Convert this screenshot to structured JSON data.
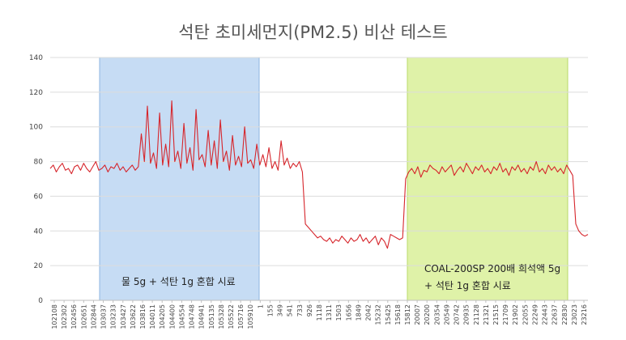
{
  "chart_data": {
    "type": "line",
    "title": "석탄 초미세먼지(PM2.5) 비산 테스트",
    "xlabel": "",
    "ylabel": "",
    "ylim": [
      0,
      140
    ],
    "yticks": [
      0,
      20,
      40,
      60,
      80,
      100,
      120,
      140
    ],
    "grid": true,
    "x_tick_labels": [
      "102108",
      "102302",
      "102456",
      "102651",
      "102844",
      "103037",
      "103233",
      "103427",
      "103622",
      "103816",
      "104011",
      "104205",
      "104400",
      "104554",
      "104748",
      "104941",
      "105135",
      "105328",
      "105522",
      "105716",
      "105910",
      "1",
      "155",
      "349",
      "541",
      "733",
      "926",
      "1118",
      "1311",
      "1503",
      "1656",
      "1849",
      "2042",
      "15232",
      "15425",
      "15618",
      "15812",
      "20007",
      "20200",
      "20354",
      "20549",
      "20742",
      "20935",
      "21128",
      "21321",
      "21515",
      "21709",
      "21902",
      "22055",
      "22249",
      "22443",
      "22637",
      "22830",
      "23023",
      "23216"
    ],
    "series": [
      {
        "values": [
          76,
          78,
          74,
          77,
          79,
          75,
          76,
          73,
          77,
          78,
          75,
          79,
          76,
          74,
          77,
          80,
          75,
          76,
          78,
          74,
          77,
          76,
          79,
          75,
          77,
          74,
          76,
          78,
          75,
          77,
          96,
          80,
          112,
          79,
          85,
          76,
          108,
          78,
          90,
          77,
          115,
          80,
          86,
          76,
          102,
          79,
          88,
          75,
          110,
          81,
          84,
          77,
          98,
          78,
          92,
          76,
          104,
          80,
          86,
          75,
          95,
          78,
          83,
          77,
          100,
          79,
          81,
          76,
          90,
          78,
          84,
          77,
          88,
          76,
          80,
          75,
          92,
          78,
          82,
          76,
          79,
          77,
          80,
          74,
          44,
          42,
          40,
          38,
          36,
          37,
          35,
          34,
          36,
          33,
          35,
          34,
          37,
          35,
          33,
          36,
          34,
          35,
          38,
          34,
          36,
          33,
          35,
          37,
          32,
          36,
          34,
          30,
          38,
          37,
          36,
          35,
          36,
          70,
          74,
          76,
          73,
          77,
          71,
          75,
          74,
          78,
          76,
          75,
          73,
          77,
          74,
          76,
          78,
          72,
          75,
          77,
          74,
          79,
          76,
          73,
          77,
          75,
          78,
          74,
          76,
          73,
          77,
          75,
          79,
          74,
          76,
          72,
          77,
          75,
          78,
          74,
          76,
          73,
          77,
          75,
          80,
          74,
          76,
          73,
          78,
          75,
          77,
          74,
          76,
          73,
          78,
          75,
          72,
          44,
          40,
          38,
          37,
          38
        ]
      }
    ],
    "shaded_regions": [
      {
        "label": "물 5g + 석탄 1g 혼합 시료",
        "color": "#c6dcf4",
        "border": "#8eb6e0"
      },
      {
        "label_lines": [
          "COAL-200SP 200배 희석액 5g",
          "+ 석탄 1g 혼합 시료"
        ],
        "color": "#dff2a8",
        "border": "#b8da6a"
      }
    ],
    "line_color": "#d6252b"
  }
}
